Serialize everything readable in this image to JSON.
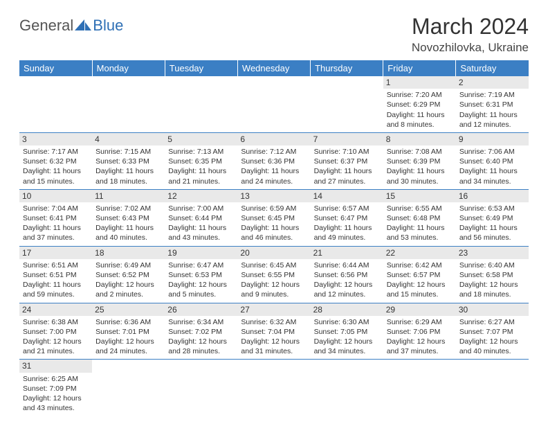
{
  "logo": {
    "part1": "General",
    "part2": "Blue",
    "color1": "#555555",
    "color2": "#2e6fb5"
  },
  "title": "March 2024",
  "location": "Novozhilovka, Ukraine",
  "theme": {
    "header_bg": "#3b7fc4",
    "daynum_bg": "#e9e9e9",
    "rule": "#3b7fc4"
  },
  "dayHeaders": [
    "Sunday",
    "Monday",
    "Tuesday",
    "Wednesday",
    "Thursday",
    "Friday",
    "Saturday"
  ],
  "weeks": [
    [
      null,
      null,
      null,
      null,
      null,
      {
        "n": "1",
        "sr": "Sunrise: 7:20 AM",
        "ss": "Sunset: 6:29 PM",
        "dl1": "Daylight: 11 hours",
        "dl2": "and 8 minutes."
      },
      {
        "n": "2",
        "sr": "Sunrise: 7:19 AM",
        "ss": "Sunset: 6:31 PM",
        "dl1": "Daylight: 11 hours",
        "dl2": "and 12 minutes."
      }
    ],
    [
      {
        "n": "3",
        "sr": "Sunrise: 7:17 AM",
        "ss": "Sunset: 6:32 PM",
        "dl1": "Daylight: 11 hours",
        "dl2": "and 15 minutes."
      },
      {
        "n": "4",
        "sr": "Sunrise: 7:15 AM",
        "ss": "Sunset: 6:33 PM",
        "dl1": "Daylight: 11 hours",
        "dl2": "and 18 minutes."
      },
      {
        "n": "5",
        "sr": "Sunrise: 7:13 AM",
        "ss": "Sunset: 6:35 PM",
        "dl1": "Daylight: 11 hours",
        "dl2": "and 21 minutes."
      },
      {
        "n": "6",
        "sr": "Sunrise: 7:12 AM",
        "ss": "Sunset: 6:36 PM",
        "dl1": "Daylight: 11 hours",
        "dl2": "and 24 minutes."
      },
      {
        "n": "7",
        "sr": "Sunrise: 7:10 AM",
        "ss": "Sunset: 6:37 PM",
        "dl1": "Daylight: 11 hours",
        "dl2": "and 27 minutes."
      },
      {
        "n": "8",
        "sr": "Sunrise: 7:08 AM",
        "ss": "Sunset: 6:39 PM",
        "dl1": "Daylight: 11 hours",
        "dl2": "and 30 minutes."
      },
      {
        "n": "9",
        "sr": "Sunrise: 7:06 AM",
        "ss": "Sunset: 6:40 PM",
        "dl1": "Daylight: 11 hours",
        "dl2": "and 34 minutes."
      }
    ],
    [
      {
        "n": "10",
        "sr": "Sunrise: 7:04 AM",
        "ss": "Sunset: 6:41 PM",
        "dl1": "Daylight: 11 hours",
        "dl2": "and 37 minutes."
      },
      {
        "n": "11",
        "sr": "Sunrise: 7:02 AM",
        "ss": "Sunset: 6:43 PM",
        "dl1": "Daylight: 11 hours",
        "dl2": "and 40 minutes."
      },
      {
        "n": "12",
        "sr": "Sunrise: 7:00 AM",
        "ss": "Sunset: 6:44 PM",
        "dl1": "Daylight: 11 hours",
        "dl2": "and 43 minutes."
      },
      {
        "n": "13",
        "sr": "Sunrise: 6:59 AM",
        "ss": "Sunset: 6:45 PM",
        "dl1": "Daylight: 11 hours",
        "dl2": "and 46 minutes."
      },
      {
        "n": "14",
        "sr": "Sunrise: 6:57 AM",
        "ss": "Sunset: 6:47 PM",
        "dl1": "Daylight: 11 hours",
        "dl2": "and 49 minutes."
      },
      {
        "n": "15",
        "sr": "Sunrise: 6:55 AM",
        "ss": "Sunset: 6:48 PM",
        "dl1": "Daylight: 11 hours",
        "dl2": "and 53 minutes."
      },
      {
        "n": "16",
        "sr": "Sunrise: 6:53 AM",
        "ss": "Sunset: 6:49 PM",
        "dl1": "Daylight: 11 hours",
        "dl2": "and 56 minutes."
      }
    ],
    [
      {
        "n": "17",
        "sr": "Sunrise: 6:51 AM",
        "ss": "Sunset: 6:51 PM",
        "dl1": "Daylight: 11 hours",
        "dl2": "and 59 minutes."
      },
      {
        "n": "18",
        "sr": "Sunrise: 6:49 AM",
        "ss": "Sunset: 6:52 PM",
        "dl1": "Daylight: 12 hours",
        "dl2": "and 2 minutes."
      },
      {
        "n": "19",
        "sr": "Sunrise: 6:47 AM",
        "ss": "Sunset: 6:53 PM",
        "dl1": "Daylight: 12 hours",
        "dl2": "and 5 minutes."
      },
      {
        "n": "20",
        "sr": "Sunrise: 6:45 AM",
        "ss": "Sunset: 6:55 PM",
        "dl1": "Daylight: 12 hours",
        "dl2": "and 9 minutes."
      },
      {
        "n": "21",
        "sr": "Sunrise: 6:44 AM",
        "ss": "Sunset: 6:56 PM",
        "dl1": "Daylight: 12 hours",
        "dl2": "and 12 minutes."
      },
      {
        "n": "22",
        "sr": "Sunrise: 6:42 AM",
        "ss": "Sunset: 6:57 PM",
        "dl1": "Daylight: 12 hours",
        "dl2": "and 15 minutes."
      },
      {
        "n": "23",
        "sr": "Sunrise: 6:40 AM",
        "ss": "Sunset: 6:58 PM",
        "dl1": "Daylight: 12 hours",
        "dl2": "and 18 minutes."
      }
    ],
    [
      {
        "n": "24",
        "sr": "Sunrise: 6:38 AM",
        "ss": "Sunset: 7:00 PM",
        "dl1": "Daylight: 12 hours",
        "dl2": "and 21 minutes."
      },
      {
        "n": "25",
        "sr": "Sunrise: 6:36 AM",
        "ss": "Sunset: 7:01 PM",
        "dl1": "Daylight: 12 hours",
        "dl2": "and 24 minutes."
      },
      {
        "n": "26",
        "sr": "Sunrise: 6:34 AM",
        "ss": "Sunset: 7:02 PM",
        "dl1": "Daylight: 12 hours",
        "dl2": "and 28 minutes."
      },
      {
        "n": "27",
        "sr": "Sunrise: 6:32 AM",
        "ss": "Sunset: 7:04 PM",
        "dl1": "Daylight: 12 hours",
        "dl2": "and 31 minutes."
      },
      {
        "n": "28",
        "sr": "Sunrise: 6:30 AM",
        "ss": "Sunset: 7:05 PM",
        "dl1": "Daylight: 12 hours",
        "dl2": "and 34 minutes."
      },
      {
        "n": "29",
        "sr": "Sunrise: 6:29 AM",
        "ss": "Sunset: 7:06 PM",
        "dl1": "Daylight: 12 hours",
        "dl2": "and 37 minutes."
      },
      {
        "n": "30",
        "sr": "Sunrise: 6:27 AM",
        "ss": "Sunset: 7:07 PM",
        "dl1": "Daylight: 12 hours",
        "dl2": "and 40 minutes."
      }
    ],
    [
      {
        "n": "31",
        "sr": "Sunrise: 6:25 AM",
        "ss": "Sunset: 7:09 PM",
        "dl1": "Daylight: 12 hours",
        "dl2": "and 43 minutes."
      },
      null,
      null,
      null,
      null,
      null,
      null
    ]
  ]
}
